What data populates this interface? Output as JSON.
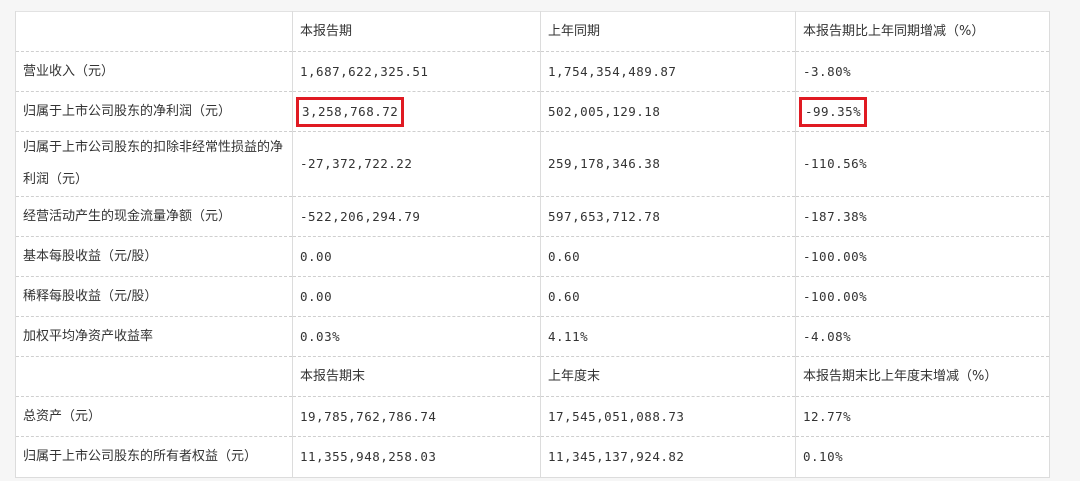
{
  "colors": {
    "highlight": "#e01a22",
    "background": "#f6f6f6"
  },
  "header": [
    "",
    "本报告期",
    "上年同期",
    "本报告期比上年同期增减（%）"
  ],
  "rows": [
    [
      "营业收入（元）",
      "1,687,622,325.51",
      "1,754,354,489.87",
      "-3.80%"
    ],
    [
      "归属于上市公司股东的净利润（元）",
      "3,258,768.72",
      "502,005,129.18",
      "-99.35%"
    ],
    [
      "归属于上市公司股东的扣除非经常性损益的净利润（元）",
      "-27,372,722.22",
      "259,178,346.38",
      "-110.56%"
    ],
    [
      "经营活动产生的现金流量净额（元）",
      "-522,206,294.79",
      "597,653,712.78",
      "-187.38%"
    ],
    [
      "基本每股收益（元/股）",
      "0.00",
      "0.60",
      "-100.00%"
    ],
    [
      "稀释每股收益（元/股）",
      "0.00",
      "0.60",
      "-100.00%"
    ],
    [
      "加权平均净资产收益率",
      "0.03%",
      "4.11%",
      "-4.08%"
    ]
  ],
  "subheader": [
    "",
    "本报告期末",
    "上年度末",
    "本报告期末比上年度末增减（%）"
  ],
  "rows2": [
    [
      "总资产（元）",
      "19,785,762,786.74",
      "17,545,051,088.73",
      "12.77%"
    ],
    [
      "归属于上市公司股东的所有者权益（元）",
      "11,355,948,258.03",
      "11,345,137,924.82",
      "0.10%"
    ]
  ],
  "highlighted_cells": [
    "rows.1.1",
    "rows.1.3"
  ]
}
